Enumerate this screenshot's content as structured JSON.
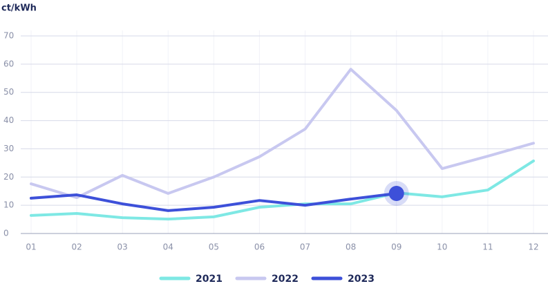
{
  "chart_data": {
    "type": "line",
    "y_label": "ct/kWh",
    "categories": [
      "01",
      "02",
      "03",
      "04",
      "05",
      "06",
      "07",
      "08",
      "09",
      "10",
      "11",
      "12"
    ],
    "series": [
      {
        "name": "2021",
        "color": "#7ee8e4",
        "values": [
          6.4,
          7.1,
          5.6,
          5.1,
          5.9,
          9.3,
          10.5,
          10.5,
          14.4,
          13,
          15.4,
          25.7
        ]
      },
      {
        "name": "2022",
        "color": "#c8c8f0",
        "values": [
          17.6,
          12.7,
          20.6,
          14.2,
          20,
          27.2,
          37,
          58.2,
          43.6,
          23,
          27.4,
          32
        ]
      },
      {
        "name": "2023",
        "color": "#3d50d9",
        "values": [
          12.5,
          13.7,
          10.5,
          8.1,
          9.3,
          11.7,
          10,
          12.2,
          14.2,
          null,
          null,
          null
        ]
      }
    ],
    "ylim": [
      0,
      70
    ],
    "yticks": [
      0,
      10,
      20,
      30,
      40,
      50,
      60,
      70
    ],
    "grid": true
  }
}
